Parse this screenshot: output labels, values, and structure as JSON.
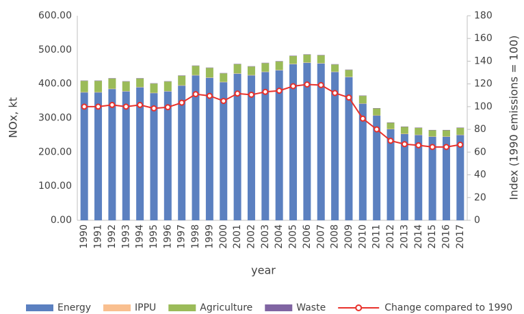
{
  "chart_data": {
    "type": "bar",
    "stacked": true,
    "xlabel": "year",
    "ylabel": "NOx, kt",
    "y2label": "Index (1990 emissions = 100)",
    "categories": [
      "1990",
      "1991",
      "1992",
      "1993",
      "1994",
      "1995",
      "1996",
      "1997",
      "1998",
      "1999",
      "2000",
      "2001",
      "2002",
      "2003",
      "2004",
      "2005",
      "2006",
      "2007",
      "2008",
      "2009",
      "2010",
      "2011",
      "2012",
      "2013",
      "2014",
      "2015",
      "2016",
      "2017"
    ],
    "series": [
      {
        "name": "Energy",
        "color": "#5b80c0",
        "values": [
          375,
          375,
          385,
          378,
          390,
          373,
          378,
          395,
          425,
          418,
          405,
          430,
          425,
          435,
          440,
          458,
          462,
          460,
          435,
          420,
          342,
          307,
          267,
          253,
          250,
          245,
          245,
          250
        ]
      },
      {
        "name": "IPPU",
        "color": "#f9bf8f",
        "values": [
          1,
          1,
          1,
          1,
          1,
          1,
          1,
          1,
          1,
          1,
          1,
          1,
          1,
          1,
          1,
          1,
          1,
          1,
          1,
          1,
          1,
          1,
          1,
          1,
          1,
          1,
          1,
          1
        ]
      },
      {
        "name": "Agriculture",
        "color": "#9bbb59",
        "values": [
          33,
          33,
          30,
          28,
          25,
          27,
          28,
          28,
          27,
          28,
          25,
          27,
          25,
          25,
          25,
          23,
          23,
          23,
          21,
          20,
          22,
          20,
          18,
          20,
          20,
          18,
          18,
          20
        ]
      },
      {
        "name": "Waste",
        "color": "#8064a2",
        "values": [
          1,
          1,
          1,
          1,
          1,
          1,
          1,
          1,
          1,
          1,
          1,
          1,
          1,
          1,
          1,
          1,
          1,
          1,
          1,
          1,
          1,
          1,
          1,
          1,
          1,
          1,
          1,
          1
        ]
      },
      {
        "name": "Change compared to 1990",
        "type": "line",
        "axis": "y2",
        "color": "#e8302a",
        "values": [
          100,
          100,
          101.5,
          100,
          101.5,
          98.5,
          99.5,
          103.5,
          111,
          109.5,
          105,
          111.5,
          110.5,
          113,
          114,
          118,
          119.5,
          119,
          112,
          108,
          89.5,
          80,
          70,
          67,
          66,
          64.5,
          64.5,
          66.5
        ]
      }
    ],
    "ylim": [
      0,
      600
    ],
    "yticks": [
      {
        "value": 0,
        "label": "0.00"
      },
      {
        "value": 100,
        "label": "100.00"
      },
      {
        "value": 200,
        "label": "200.00"
      },
      {
        "value": 300,
        "label": "300.00"
      },
      {
        "value": 400,
        "label": "400.00"
      },
      {
        "value": 500,
        "label": "500.00"
      },
      {
        "value": 600,
        "label": "600.00"
      }
    ],
    "y2lim": [
      0,
      180
    ],
    "y2ticks": [
      0,
      20,
      40,
      60,
      80,
      100,
      120,
      140,
      160,
      180
    ],
    "grid": false,
    "legend": "bottom"
  }
}
